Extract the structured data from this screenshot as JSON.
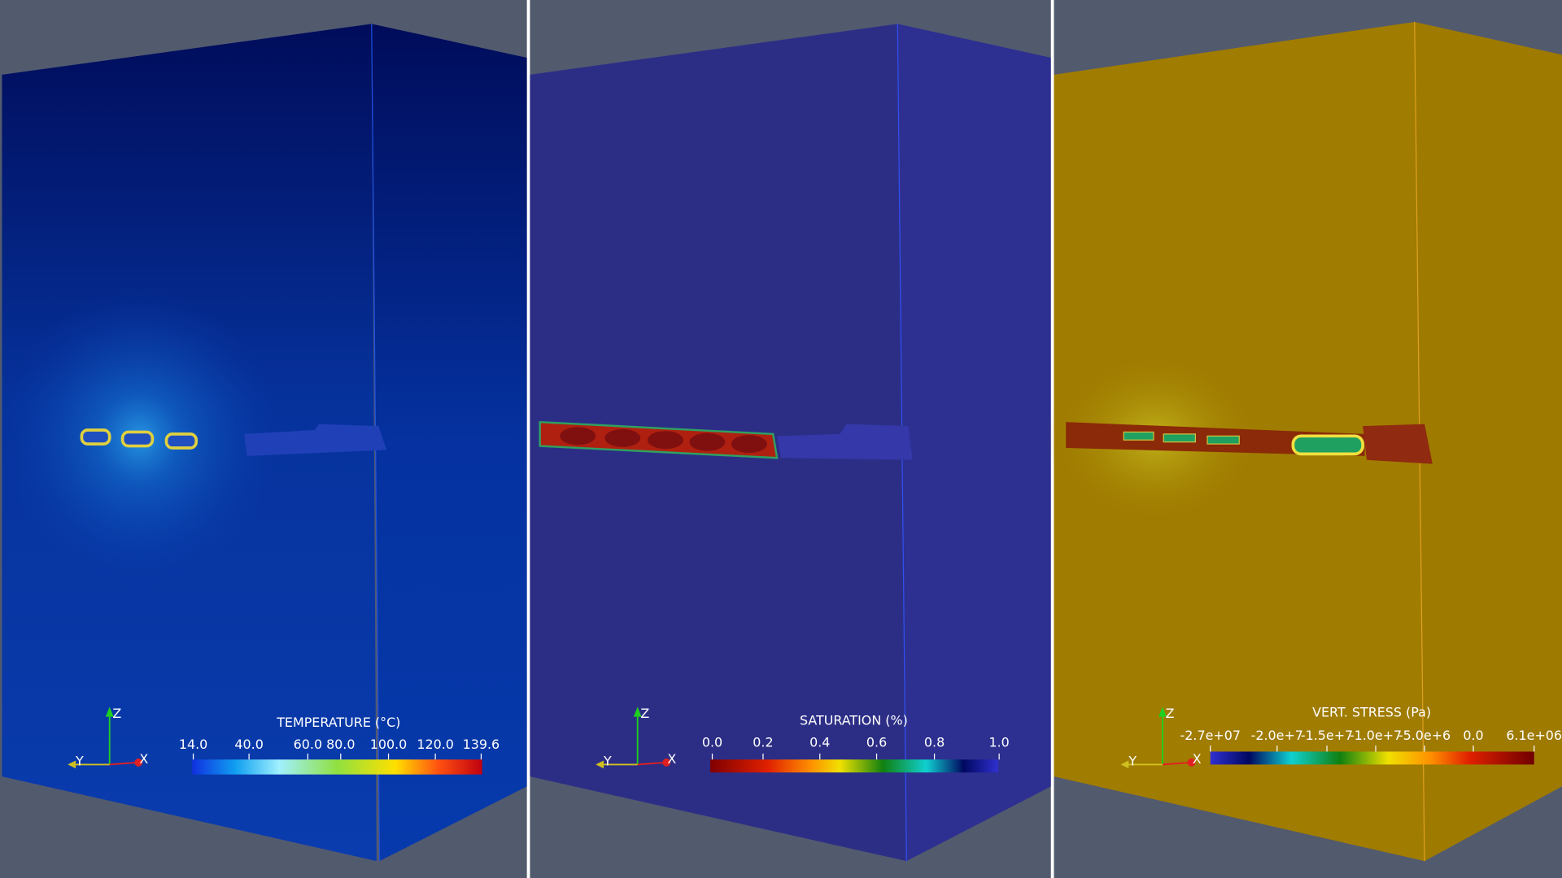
{
  "panels": [
    {
      "colorbar": {
        "title": "TEMPERATURE (°C)",
        "ticks": [
          "14.0",
          "40.0",
          "60.0",
          "80.0",
          "100.0",
          "120.0",
          "139.6"
        ]
      },
      "axes": {
        "x": "X",
        "y": "Y",
        "z": "Z"
      }
    },
    {
      "colorbar": {
        "title": "SATURATION (%)",
        "ticks": [
          "0.0",
          "0.2",
          "0.4",
          "0.6",
          "0.8",
          "1.0"
        ]
      },
      "axes": {
        "x": "X",
        "y": "Y",
        "z": "Z"
      }
    },
    {
      "colorbar": {
        "title": "VERT. STRESS (Pa)",
        "ticks": [
          "-2.7e+07",
          "-2.0e+7",
          "-1.5e+7",
          "-1.0e+7",
          "-5.0e+6",
          "0.0",
          "6.1e+06"
        ]
      },
      "axes": {
        "x": "X",
        "y": "Y",
        "z": "Z"
      }
    }
  ]
}
